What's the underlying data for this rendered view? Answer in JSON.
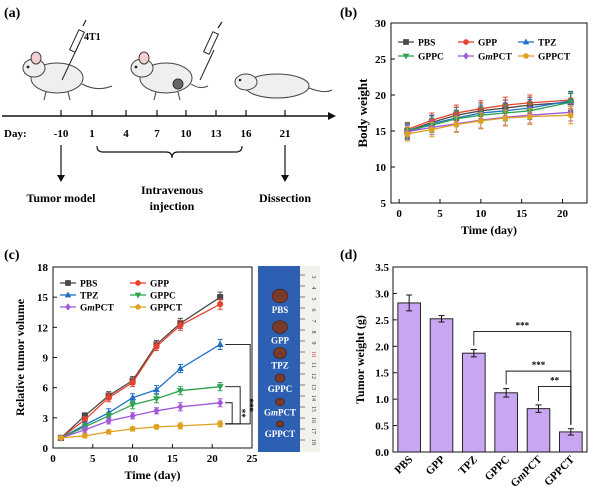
{
  "panel_labels": {
    "a": "(a)",
    "b": "(b)",
    "c": "(c)",
    "d": "(d)"
  },
  "schematic": {
    "day_prefix": "Day:",
    "days": [
      "-10",
      "1",
      "4",
      "7",
      "10",
      "13",
      "16",
      "21"
    ],
    "cell_line": "4T1",
    "tumor_model": "Tumor model",
    "injection_line1": "Intravenous",
    "injection_line2": "injection",
    "dissection": "Dissection"
  },
  "photo": {
    "labels": [
      "PBS",
      "GPP",
      "TPZ",
      "GPPC",
      "GmPCT",
      "GPPCT"
    ],
    "ruler_marks": [
      "3",
      "4",
      "5",
      "6",
      "7",
      "8",
      "9",
      "10",
      "11",
      "12",
      "13",
      "14",
      "15",
      "16",
      "17",
      "18"
    ]
  },
  "chart_data": [
    {
      "type": "line",
      "panel": "b",
      "xlabel": "Time (day)",
      "ylabel": "Body weight",
      "xlim": [
        -1,
        23
      ],
      "ylim": [
        5,
        30
      ],
      "xticks": [
        0,
        5,
        10,
        15,
        20
      ],
      "yticks": [
        5,
        10,
        15,
        20,
        25,
        30
      ],
      "legend": "top, 2 rows",
      "x": [
        1,
        4,
        7,
        10,
        13,
        16,
        21
      ],
      "series": [
        {
          "name": "PBS",
          "color": "#4a4a4a",
          "marker": "square",
          "values": [
            15.0,
            16.2,
            17.2,
            17.8,
            18.2,
            18.6,
            19.0
          ],
          "errors": [
            1.0,
            1.0,
            1.1,
            1.1,
            1.1,
            1.1,
            1.2
          ]
        },
        {
          "name": "GPP",
          "color": "#e8432e",
          "marker": "circle",
          "values": [
            15.2,
            16.5,
            17.5,
            18.1,
            18.6,
            18.9,
            19.3
          ],
          "errors": [
            1.0,
            1.0,
            1.1,
            1.1,
            1.1,
            1.1,
            1.2
          ]
        },
        {
          "name": "TPZ",
          "color": "#1f6fc4",
          "marker": "triangle",
          "values": [
            14.8,
            16.0,
            16.8,
            17.5,
            17.8,
            18.2,
            19.2
          ],
          "errors": [
            1.0,
            1.1,
            1.1,
            1.1,
            1.1,
            1.2,
            1.3
          ]
        },
        {
          "name": "GPPC",
          "color": "#2ea44f",
          "marker": "triangle-down",
          "values": [
            15.1,
            15.8,
            16.7,
            17.2,
            17.5,
            17.8,
            19.0
          ],
          "errors": [
            1.0,
            1.0,
            1.1,
            1.1,
            1.1,
            1.2,
            1.3
          ]
        },
        {
          "name": "GmPCT",
          "color": "#a259d9",
          "marker": "diamond",
          "values": [
            14.9,
            15.5,
            16.0,
            16.5,
            16.9,
            17.2,
            17.6
          ],
          "errors": [
            1.0,
            1.0,
            1.1,
            1.1,
            1.1,
            1.1,
            1.2
          ]
        },
        {
          "name": "GPPCT",
          "color": "#e0a020",
          "marker": "pentagon",
          "values": [
            14.6,
            15.2,
            15.9,
            16.4,
            16.8,
            17.0,
            17.2
          ],
          "errors": [
            1.0,
            1.0,
            1.1,
            1.1,
            1.1,
            1.1,
            1.2
          ]
        }
      ]
    },
    {
      "type": "line",
      "panel": "c",
      "xlabel": "Time (day)",
      "ylabel": "Relative tumor volume",
      "xlim": [
        0,
        25
      ],
      "ylim": [
        0,
        18
      ],
      "xticks": [
        0,
        5,
        10,
        15,
        20,
        25
      ],
      "yticks": [
        0,
        3,
        6,
        9,
        12,
        15,
        18
      ],
      "legend": "top-left, 3 rows",
      "x": [
        1,
        4,
        7,
        10,
        13,
        16,
        21
      ],
      "series": [
        {
          "name": "PBS",
          "color": "#4a4a4a",
          "marker": "square",
          "values": [
            1.0,
            3.2,
            5.2,
            6.7,
            10.3,
            12.4,
            15.0
          ],
          "errors": [
            0.1,
            0.3,
            0.4,
            0.4,
            0.4,
            0.5,
            0.5
          ]
        },
        {
          "name": "GPP",
          "color": "#e8432e",
          "marker": "circle",
          "values": [
            1.0,
            2.8,
            5.0,
            6.5,
            10.1,
            12.2,
            14.3
          ],
          "errors": [
            0.1,
            0.3,
            0.4,
            0.4,
            0.4,
            0.5,
            0.5
          ]
        },
        {
          "name": "TPZ",
          "color": "#1f6fc4",
          "marker": "triangle",
          "values": [
            1.0,
            2.3,
            3.5,
            5.0,
            5.8,
            7.9,
            10.3
          ],
          "errors": [
            0.1,
            0.3,
            0.4,
            0.4,
            0.4,
            0.4,
            0.5
          ]
        },
        {
          "name": "GPPC",
          "color": "#2ea44f",
          "marker": "triangle-down",
          "values": [
            1.0,
            2.1,
            3.2,
            4.3,
            4.9,
            5.7,
            6.1
          ],
          "errors": [
            0.1,
            0.3,
            0.3,
            0.4,
            0.4,
            0.4,
            0.4
          ]
        },
        {
          "name": "GmPCT",
          "color": "#a259d9",
          "marker": "diamond",
          "values": [
            1.0,
            1.8,
            2.7,
            3.2,
            3.7,
            4.1,
            4.5
          ],
          "errors": [
            0.1,
            0.3,
            0.3,
            0.3,
            0.3,
            0.4,
            0.4
          ]
        },
        {
          "name": "GPPCT",
          "color": "#e0a020",
          "marker": "pentagon",
          "values": [
            1.0,
            1.2,
            1.6,
            1.9,
            2.1,
            2.2,
            2.4
          ],
          "errors": [
            0.1,
            0.2,
            0.2,
            0.2,
            0.2,
            0.3,
            0.3
          ]
        }
      ],
      "significance": [
        {
          "from": "TPZ",
          "to": "GPPCT",
          "label": "***"
        },
        {
          "from": "GPPC",
          "to": "GPPCT",
          "label": "***"
        },
        {
          "from": "GmPCT",
          "to": "GPPCT",
          "label": "**"
        }
      ]
    },
    {
      "type": "bar",
      "panel": "d",
      "xlabel": "",
      "ylabel": "Tumor weight (g)",
      "ylim": [
        0,
        3.5
      ],
      "yticks": [
        0.0,
        0.5,
        1.0,
        1.5,
        2.0,
        2.5,
        3.0,
        3.5
      ],
      "bar_color": "#c9a6f2",
      "categories": [
        "PBS",
        "GPP",
        "TPZ",
        "GPPC",
        "GmPCT",
        "GPPCT"
      ],
      "values": [
        2.82,
        2.52,
        1.87,
        1.12,
        0.82,
        0.38
      ],
      "errors": [
        0.15,
        0.06,
        0.07,
        0.08,
        0.07,
        0.06
      ],
      "significance": [
        {
          "from": "TPZ",
          "to": "GPPCT",
          "label": "***"
        },
        {
          "from": "GPPC",
          "to": "GPPCT",
          "label": "***"
        },
        {
          "from": "GmPCT",
          "to": "GPPCT",
          "label": "**"
        }
      ]
    }
  ]
}
